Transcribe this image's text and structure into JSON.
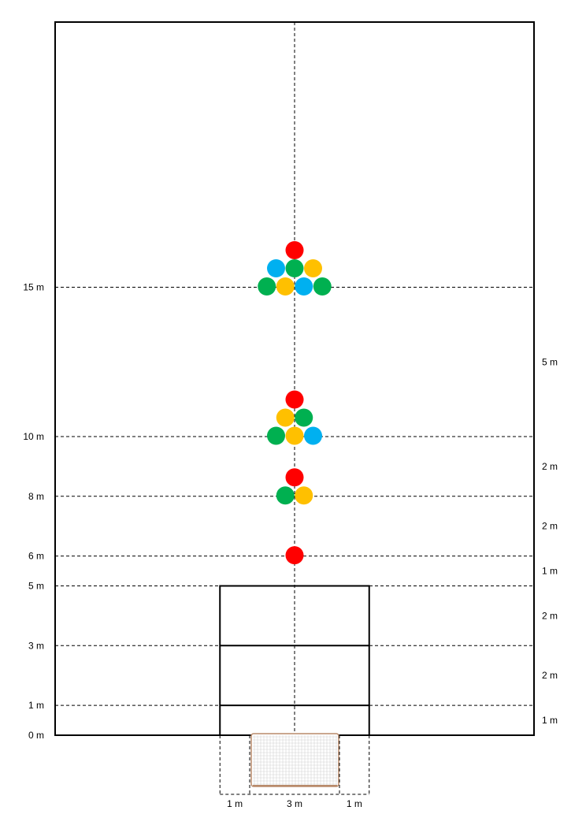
{
  "diagram": {
    "distance_labels_left": [
      {
        "id": "0m",
        "text": "0 m",
        "value": 0
      },
      {
        "id": "1m",
        "text": "1 m",
        "value": 1
      },
      {
        "id": "3m",
        "text": "3 m",
        "value": 3
      },
      {
        "id": "5m",
        "text": "5 m",
        "value": 5
      },
      {
        "id": "6m",
        "text": "6 m",
        "value": 6
      },
      {
        "id": "8m",
        "text": "8 m",
        "value": 8
      },
      {
        "id": "10m",
        "text": "10 m",
        "value": 10
      },
      {
        "id": "15m",
        "text": "15 m",
        "value": 15
      }
    ],
    "interval_labels_right": [
      {
        "text": "1 m",
        "from": 0,
        "to": 1
      },
      {
        "text": "2 m",
        "from": 1,
        "to": 3
      },
      {
        "text": "2 m",
        "from": 3,
        "to": 5
      },
      {
        "text": "1 m",
        "from": 5,
        "to": 6
      },
      {
        "text": "2 m",
        "from": 6,
        "to": 8
      },
      {
        "text": "2 m",
        "from": 8,
        "to": 10
      },
      {
        "text": "5 m",
        "from": 10,
        "to": 15
      }
    ],
    "goal_width_labels": [
      {
        "text": "1 m",
        "from": -2.5,
        "to": -1.5
      },
      {
        "text": "3 m",
        "from": -1.5,
        "to": 1.5
      },
      {
        "text": "1 m",
        "from": 1.5,
        "to": 2.5
      }
    ],
    "box_lines_m": [
      1,
      3,
      5
    ],
    "box_half_width_m": 2.5,
    "goal_half_width_m": 1.5,
    "colors": {
      "red": "#ff0000",
      "green": "#00b050",
      "yellow": "#ffc000",
      "blue": "#00b0f0",
      "goal_net_frame": "#b88a6a"
    },
    "ball_groups": [
      {
        "distance_m": 6,
        "rows": [
          [
            "red"
          ]
        ]
      },
      {
        "distance_m": 8,
        "rows": [
          [
            "red"
          ],
          [
            "green",
            "yellow"
          ]
        ]
      },
      {
        "distance_m": 10,
        "rows": [
          [
            "red"
          ],
          [
            "yellow",
            "green"
          ],
          [
            "green",
            "yellow",
            "blue"
          ]
        ]
      },
      {
        "distance_m": 15,
        "rows": [
          [
            "red"
          ],
          [
            "blue",
            "green",
            "yellow"
          ],
          [
            "green",
            "yellow",
            "blue",
            "green"
          ]
        ]
      }
    ]
  }
}
